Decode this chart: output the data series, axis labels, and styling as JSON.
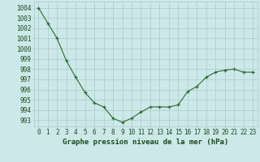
{
  "x": [
    0,
    1,
    2,
    3,
    4,
    5,
    6,
    7,
    8,
    9,
    10,
    11,
    12,
    13,
    14,
    15,
    16,
    17,
    18,
    19,
    20,
    21,
    22,
    23
  ],
  "y": [
    1004,
    1002.5,
    1001,
    998.8,
    997.2,
    995.7,
    994.7,
    994.3,
    993.2,
    992.8,
    993.2,
    993.8,
    994.3,
    994.3,
    994.3,
    994.5,
    995.8,
    996.3,
    997.2,
    997.7,
    997.9,
    998.0,
    997.7,
    997.7
  ],
  "line_color": "#2d6a2d",
  "marker_color": "#2d6a2d",
  "bg_color": "#cce8e8",
  "grid_color": "#aacccc",
  "xlabel": "Graphe pression niveau de la mer (hPa)",
  "xlabel_color": "#1a4a1a",
  "xlabel_fontsize": 6.5,
  "ylabel_ticks": [
    993,
    994,
    995,
    996,
    997,
    998,
    999,
    1000,
    1001,
    1002,
    1003,
    1004
  ],
  "ylim": [
    992.4,
    1004.6
  ],
  "xlim": [
    -0.5,
    23.5
  ],
  "tick_fontsize": 5.5,
  "title_color": "#1a4a1a"
}
